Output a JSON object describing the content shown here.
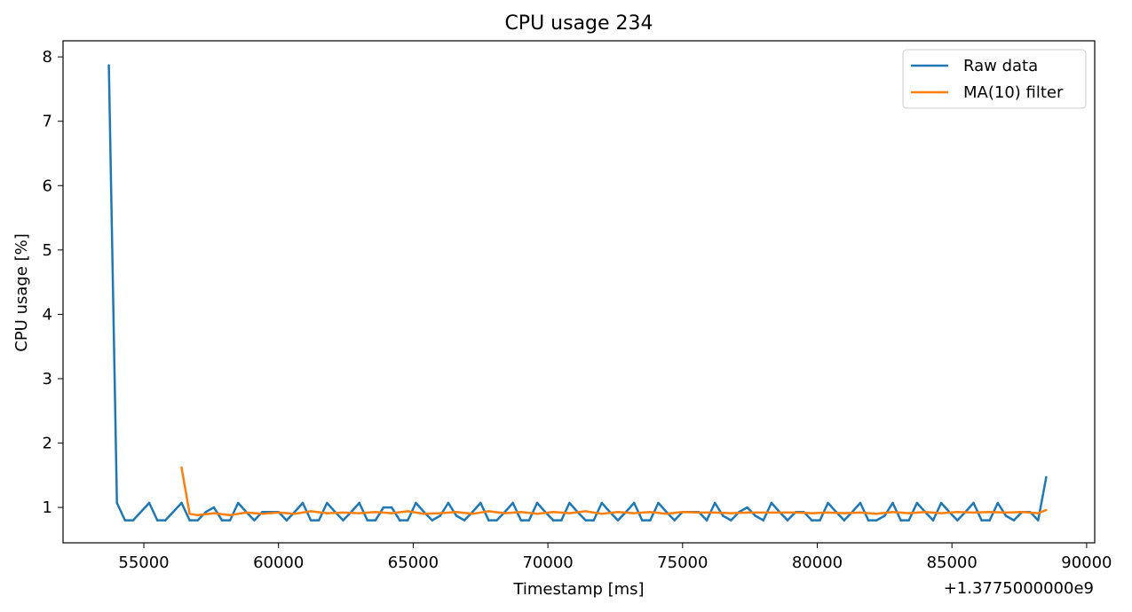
{
  "chart_data": {
    "type": "line",
    "title": "CPU usage 234",
    "xlabel": "Timestamp [ms]",
    "ylabel": "CPU usage [%]",
    "x_offset_label": "+1.3775000000e9",
    "xlim": [
      52000,
      90300
    ],
    "ylim": [
      0.45,
      8.25
    ],
    "x_ticks": [
      55000,
      60000,
      65000,
      70000,
      75000,
      80000,
      85000,
      90000
    ],
    "x_tick_labels": [
      "55000",
      "60000",
      "65000",
      "70000",
      "75000",
      "80000",
      "85000",
      "90000"
    ],
    "y_ticks": [
      1,
      2,
      3,
      4,
      5,
      6,
      7,
      8
    ],
    "y_tick_labels": [
      "1",
      "2",
      "3",
      "4",
      "5",
      "6",
      "7",
      "8"
    ],
    "grid": false,
    "legend_position": "top-right",
    "series": [
      {
        "name": "Raw data",
        "color": "#1f77b4",
        "x": [
          53700,
          54000,
          54300,
          54600,
          55200,
          55500,
          55800,
          56400,
          56700,
          57000,
          57300,
          57600,
          57900,
          58200,
          58500,
          58800,
          59100,
          59400,
          59700,
          60000,
          60300,
          60600,
          60900,
          61200,
          61500,
          61800,
          62100,
          62400,
          62700,
          63000,
          63300,
          63600,
          63900,
          64200,
          64500,
          64800,
          65100,
          65400,
          65700,
          66000,
          66300,
          66600,
          66900,
          67200,
          67500,
          67800,
          68100,
          68400,
          68700,
          69000,
          69300,
          69600,
          69900,
          70200,
          70500,
          70800,
          71100,
          71400,
          71700,
          72000,
          72300,
          72600,
          72900,
          73200,
          73500,
          73800,
          74100,
          74400,
          74700,
          75000,
          75300,
          75600,
          75900,
          76200,
          76500,
          76800,
          77100,
          77400,
          77700,
          78000,
          78300,
          78600,
          78900,
          79200,
          79500,
          79800,
          80100,
          80400,
          80700,
          81000,
          81300,
          81600,
          81900,
          82200,
          82500,
          82800,
          83100,
          83400,
          83700,
          84000,
          84300,
          84600,
          84900,
          85200,
          85500,
          85800,
          86100,
          86400,
          86700,
          87000,
          87300,
          87600,
          87900,
          88200,
          88500
        ],
        "values": [
          7.87,
          1.07,
          0.8,
          0.8,
          1.07,
          0.8,
          0.8,
          1.07,
          0.8,
          0.8,
          0.93,
          1.0,
          0.8,
          0.8,
          1.07,
          0.93,
          0.8,
          0.93,
          0.93,
          0.93,
          0.8,
          0.93,
          1.07,
          0.8,
          0.8,
          1.07,
          0.93,
          0.8,
          0.93,
          1.07,
          0.8,
          0.8,
          1.0,
          1.0,
          0.8,
          0.8,
          1.07,
          0.93,
          0.8,
          0.87,
          1.07,
          0.87,
          0.8,
          0.93,
          1.07,
          0.8,
          0.8,
          0.93,
          1.07,
          0.8,
          0.8,
          1.07,
          0.93,
          0.8,
          0.8,
          1.07,
          0.93,
          0.8,
          0.8,
          1.07,
          0.93,
          0.8,
          0.93,
          1.07,
          0.8,
          0.8,
          1.07,
          0.93,
          0.8,
          0.93,
          0.93,
          0.93,
          0.8,
          1.07,
          0.87,
          0.8,
          0.93,
          1.0,
          0.87,
          0.8,
          1.07,
          0.93,
          0.8,
          0.93,
          0.93,
          0.8,
          0.8,
          1.07,
          0.93,
          0.8,
          0.93,
          1.07,
          0.8,
          0.8,
          0.87,
          1.07,
          0.8,
          0.8,
          1.07,
          0.93,
          0.8,
          1.07,
          0.93,
          0.8,
          0.93,
          1.07,
          0.8,
          0.8,
          1.07,
          0.87,
          0.8,
          0.93,
          0.93,
          0.8,
          1.47
        ]
      },
      {
        "name": "MA(10) filter",
        "color": "#ff7f0e",
        "x": [
          56400,
          56700,
          57000,
          57600,
          58200,
          58800,
          59400,
          60000,
          60600,
          61200,
          61800,
          62400,
          63000,
          63600,
          64200,
          64800,
          65400,
          66000,
          66600,
          67200,
          67800,
          68400,
          69000,
          69600,
          70200,
          70800,
          71400,
          72000,
          72600,
          73200,
          73800,
          74400,
          75000,
          75600,
          76200,
          76800,
          77400,
          78000,
          78600,
          79200,
          79800,
          80400,
          81000,
          81600,
          82200,
          82800,
          83400,
          84000,
          84600,
          85200,
          85800,
          86400,
          87000,
          87600,
          88200,
          88500
        ],
        "values": [
          1.62,
          0.9,
          0.88,
          0.91,
          0.88,
          0.92,
          0.9,
          0.92,
          0.9,
          0.94,
          0.91,
          0.92,
          0.91,
          0.93,
          0.91,
          0.94,
          0.9,
          0.91,
          0.93,
          0.9,
          0.94,
          0.91,
          0.93,
          0.9,
          0.93,
          0.91,
          0.94,
          0.9,
          0.93,
          0.91,
          0.93,
          0.9,
          0.93,
          0.92,
          0.92,
          0.91,
          0.92,
          0.92,
          0.92,
          0.92,
          0.91,
          0.92,
          0.91,
          0.92,
          0.9,
          0.93,
          0.91,
          0.93,
          0.91,
          0.93,
          0.92,
          0.93,
          0.92,
          0.93,
          0.91,
          0.96
        ]
      }
    ]
  }
}
